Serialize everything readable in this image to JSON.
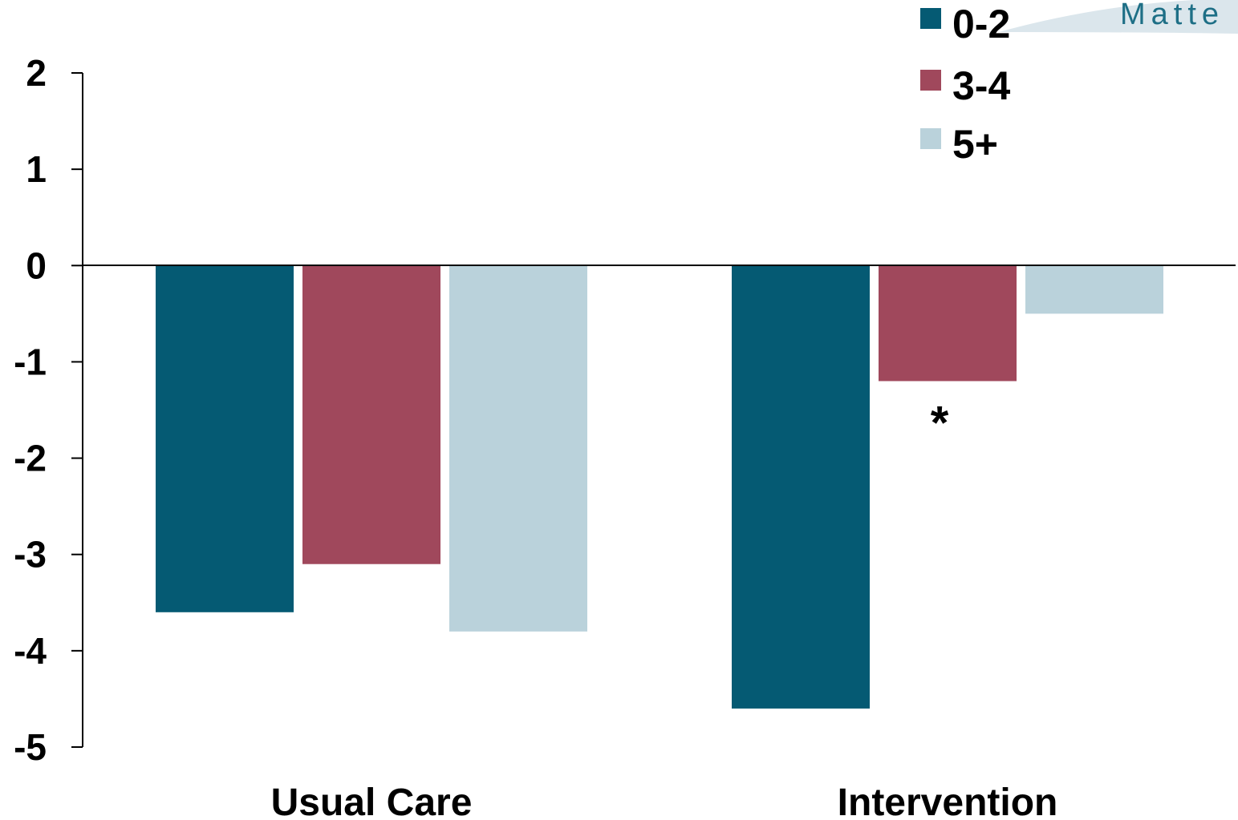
{
  "chart_data": {
    "type": "bar",
    "categories": [
      "Usual Care",
      "Intervention"
    ],
    "series": [
      {
        "name": "0-2",
        "color": "#055a73",
        "values": [
          -3.6,
          -4.6
        ]
      },
      {
        "name": "3-4",
        "color": "#a0485c",
        "values": [
          -3.1,
          -1.2
        ]
      },
      {
        "name": "5+",
        "color": "#bad2db",
        "values": [
          -3.8,
          -0.5
        ]
      }
    ],
    "ylim": [
      -5,
      2
    ],
    "yticks": [
      2,
      1,
      0,
      -1,
      -2,
      -3,
      -4,
      -5
    ],
    "legend_position": "top-right",
    "grid": false,
    "annotations": [
      {
        "text": "*",
        "category": "Intervention",
        "series": "3-4"
      }
    ]
  },
  "logo": {
    "text": "Matte"
  }
}
